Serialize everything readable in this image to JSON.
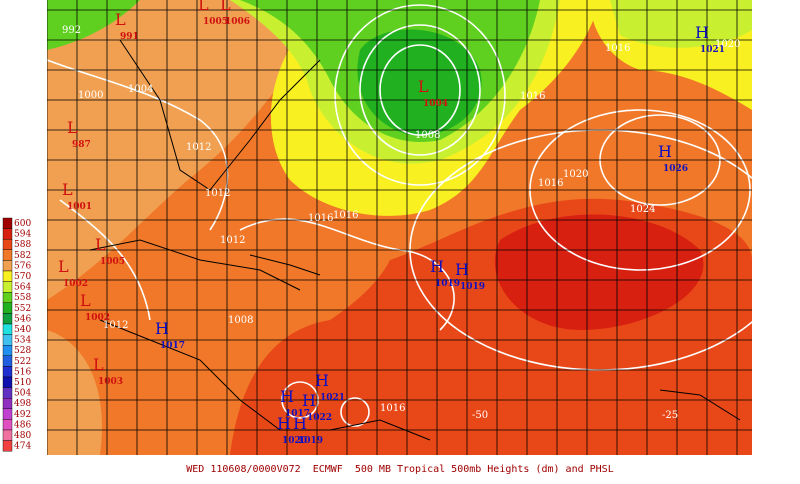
{
  "caption": "WED 110608/0000V072  ECMWF  500 MB Tropical 500mb Heights (dm) and PHSL",
  "legend": {
    "levels": [
      {
        "value": 600,
        "color": "#a00000"
      },
      {
        "value": 594,
        "color": "#d82010"
      },
      {
        "value": 588,
        "color": "#e84818"
      },
      {
        "value": 582,
        "color": "#f07828"
      },
      {
        "value": 576,
        "color": "#f0a050"
      },
      {
        "value": 570,
        "color": "#f8f020"
      },
      {
        "value": 564,
        "color": "#c8f030"
      },
      {
        "value": 558,
        "color": "#60d020"
      },
      {
        "value": 552,
        "color": "#20b020"
      },
      {
        "value": 546,
        "color": "#10a040"
      },
      {
        "value": 540,
        "color": "#20e0e0"
      },
      {
        "value": 534,
        "color": "#40c0f0"
      },
      {
        "value": 528,
        "color": "#2090f0"
      },
      {
        "value": 522,
        "color": "#2060e0"
      },
      {
        "value": 516,
        "color": "#2030d0"
      },
      {
        "value": 510,
        "color": "#1010b0"
      },
      {
        "value": 504,
        "color": "#6030c0"
      },
      {
        "value": 498,
        "color": "#9030c0"
      },
      {
        "value": 492,
        "color": "#c040d0"
      },
      {
        "value": 486,
        "color": "#e050c0"
      },
      {
        "value": 480,
        "color": "#f070a0"
      },
      {
        "value": 474,
        "color": "#f04040"
      }
    ]
  },
  "centers": [
    {
      "letter": "L",
      "value": 991
    },
    {
      "letter": "L",
      "value": 1005
    },
    {
      "letter": "L",
      "value": 1006
    },
    {
      "letter": "L",
      "value": 1004
    },
    {
      "letter": "H",
      "value": 1021
    },
    {
      "letter": "H",
      "value": 1026
    },
    {
      "letter": "L",
      "value": 987
    },
    {
      "letter": "L",
      "value": 1001
    },
    {
      "letter": "L",
      "value": 1005
    },
    {
      "letter": "L",
      "value": 1002
    },
    {
      "letter": "L",
      "value": 1002
    },
    {
      "letter": "L",
      "value": 1003
    },
    {
      "letter": "H",
      "value": 1019
    },
    {
      "letter": "H",
      "value": 1019
    },
    {
      "letter": "H",
      "value": 1017
    },
    {
      "letter": "H",
      "value": 1017
    },
    {
      "letter": "H",
      "value": 1022
    },
    {
      "letter": "H",
      "value": 1021
    },
    {
      "letter": "H",
      "value": 1020
    },
    {
      "letter": "H",
      "value": 1019
    }
  ],
  "contour_labels": [
    992,
    1000,
    1004,
    1012,
    1012,
    1016,
    1016,
    1012,
    1008,
    1008,
    1016,
    1016,
    1020,
    1016,
    1020,
    1024,
    1012,
    1016
  ],
  "lon_labels": [
    "-50",
    "-25"
  ]
}
